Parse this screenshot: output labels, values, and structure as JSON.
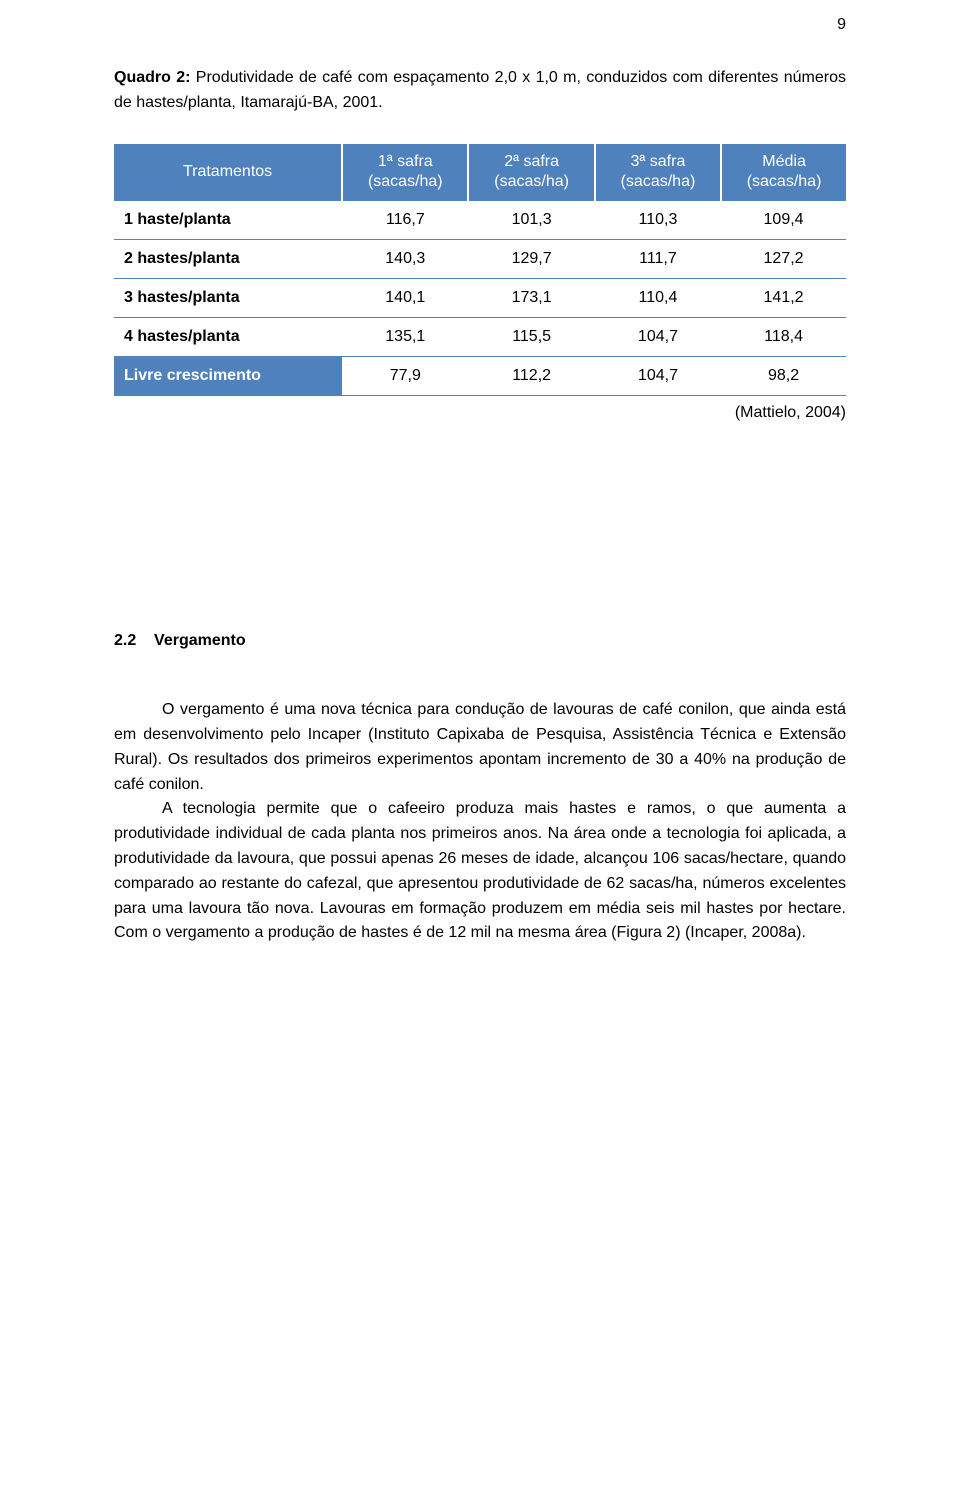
{
  "page_number": "9",
  "caption_prefix": "Quadro 2: ",
  "caption_text": "Produtividade de café com espaçamento 2,0 x 1,0 m, conduzidos com diferentes números de hastes/planta, Itamarajú-BA, 2001.",
  "table": {
    "header_bg": "#4f81bd",
    "header_fg": "#ffffff",
    "border_color": "#4f81bd",
    "columns": [
      "Tratamentos",
      "1ª safra (sacas/ha)",
      "2ª safra (sacas/ha)",
      "3ª safra (sacas/ha)",
      "Média (sacas/ha)"
    ],
    "col_line1": [
      "",
      "1ª safra",
      "2ª safra",
      "3ª safra",
      "Média"
    ],
    "col_line2": [
      "",
      "(sacas/ha)",
      "(sacas/ha)",
      "(sacas/ha)",
      "(sacas/ha)"
    ],
    "rows": [
      {
        "label": "1 haste/planta",
        "v": [
          "116,7",
          "101,3",
          "110,3",
          "109,4"
        ],
        "highlight": false
      },
      {
        "label": "2 hastes/planta",
        "v": [
          "140,3",
          "129,7",
          "111,7",
          "127,2"
        ],
        "highlight": false
      },
      {
        "label": "3 hastes/planta",
        "v": [
          "140,1",
          "173,1",
          "110,4",
          "141,2"
        ],
        "highlight": false
      },
      {
        "label": "4 hastes/planta",
        "v": [
          "135,1",
          "115,5",
          "104,7",
          "118,4"
        ],
        "highlight": false
      },
      {
        "label": "Livre crescimento",
        "v": [
          "77,9",
          "112,2",
          "104,7",
          "98,2"
        ],
        "highlight": true
      }
    ]
  },
  "citation": "(Mattielo, 2004)",
  "section_number": "2.2",
  "section_title": "Vergamento",
  "paragraphs": [
    "O vergamento é uma nova técnica para condução de lavouras de café conilon, que ainda está em desenvolvimento pelo Incaper (Instituto Capixaba de Pesquisa, Assistência Técnica e Extensão Rural). Os resultados dos primeiros experimentos apontam incremento de 30 a 40% na produção de café conilon.",
    "A tecnologia permite que o cafeeiro produza mais hastes e ramos, o que aumenta a produtividade individual de cada planta nos primeiros anos. Na área onde a tecnologia foi aplicada, a produtividade da lavoura, que possui apenas 26 meses de idade, alcançou 106 sacas/hectare, quando comparado ao restante do cafezal, que apresentou produtividade de 62 sacas/ha, números excelentes para uma lavoura tão nova. Lavouras em formação produzem em média seis mil hastes por hectare. Com o vergamento a produção de hastes é de 12 mil na mesma área (Figura 2) (Incaper, 2008a)."
  ]
}
